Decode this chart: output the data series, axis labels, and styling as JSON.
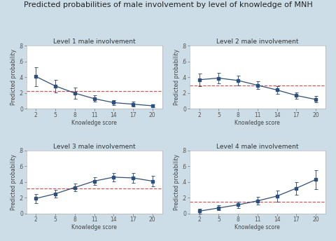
{
  "title": "Predicted probabilities of male involvement by level of knowledge of MNH",
  "subplot_titles": [
    "Level 1 male involvement",
    "Level 2 male involvement",
    "Level 3 male involvement",
    "Level 4 male involvement"
  ],
  "x": [
    2,
    5,
    8,
    11,
    14,
    17,
    20
  ],
  "ylabel": "Predicted probability",
  "xlabel": "Knowledge score",
  "background_color": "#ccdde8",
  "plot_bg_color": "#ffffff",
  "line_color": "#2e4f7a",
  "ref_line_color": "#cc3333",
  "y_data": [
    [
      0.41,
      0.29,
      0.2,
      0.13,
      0.08,
      0.06,
      0.04
    ],
    [
      0.37,
      0.39,
      0.36,
      0.3,
      0.24,
      0.17,
      0.12
    ],
    [
      0.19,
      0.25,
      0.33,
      0.41,
      0.46,
      0.45,
      0.41
    ],
    [
      0.03,
      0.07,
      0.11,
      0.16,
      0.22,
      0.32,
      0.43
    ]
  ],
  "y_err": [
    [
      0.12,
      0.08,
      0.07,
      0.04,
      0.03,
      0.03,
      0.02
    ],
    [
      0.08,
      0.07,
      0.06,
      0.05,
      0.05,
      0.04,
      0.04
    ],
    [
      0.06,
      0.05,
      0.05,
      0.05,
      0.05,
      0.06,
      0.07
    ],
    [
      0.03,
      0.03,
      0.04,
      0.05,
      0.07,
      0.08,
      0.12
    ]
  ],
  "ref_lines": [
    0.23,
    0.3,
    0.32,
    0.15
  ],
  "ylim": [
    0,
    0.8
  ],
  "yticks": [
    0,
    0.2,
    0.4,
    0.6,
    0.8
  ],
  "ytick_labels": [
    "0",
    ".2",
    ".4",
    ".6",
    ".8"
  ],
  "title_fontsize": 8,
  "subplot_title_fontsize": 6.5,
  "tick_fontsize": 5.5,
  "axis_label_fontsize": 5.5
}
